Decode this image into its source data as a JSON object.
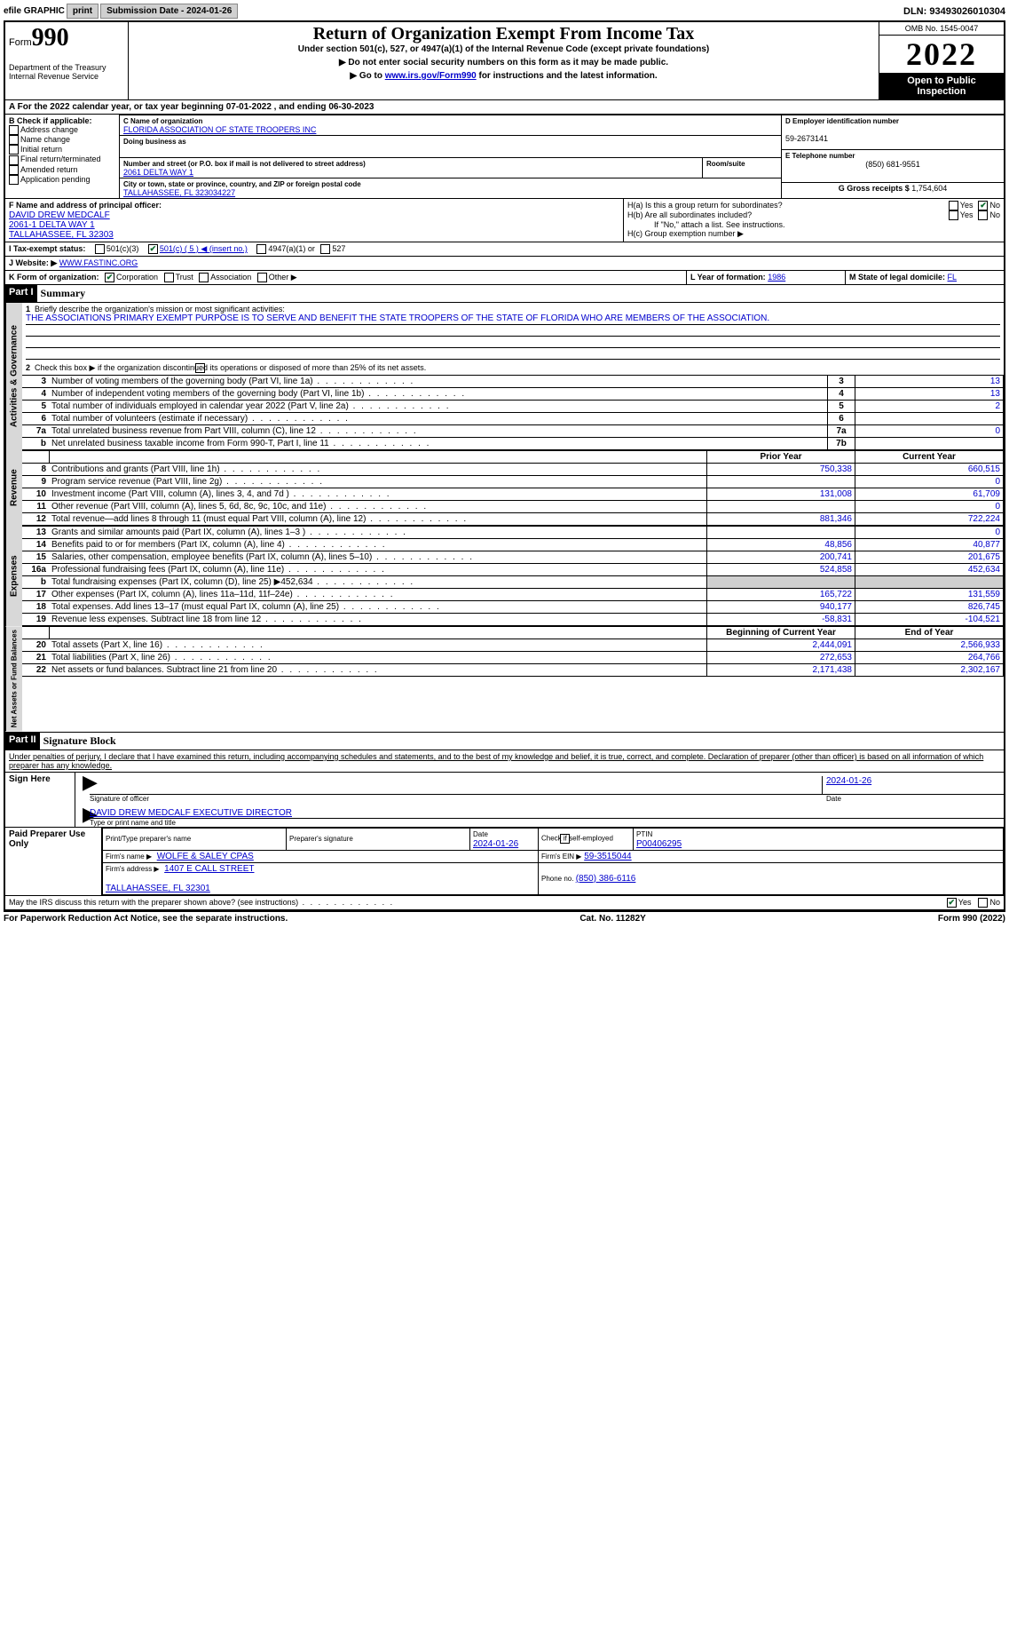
{
  "top": {
    "efile": "efile GRAPHIC",
    "print": "print",
    "submission_label": "Submission Date - ",
    "submission_date": "2024-01-26",
    "dln_label": "DLN: ",
    "dln": "93493026010304"
  },
  "header": {
    "form_word": "Form",
    "form_no": "990",
    "dept": "Department of the Treasury\nInternal Revenue Service",
    "title": "Return of Organization Exempt From Income Tax",
    "sub1": "Under section 501(c), 527, or 4947(a)(1) of the Internal Revenue Code (except private foundations)",
    "sub2": "▶ Do not enter social security numbers on this form as it may be made public.",
    "sub3_pre": "▶ Go to ",
    "sub3_link": "www.irs.gov/Form990",
    "sub3_post": " for instructions and the latest information.",
    "omb": "OMB No. 1545-0047",
    "year": "2022",
    "inspect": "Open to Public Inspection"
  },
  "a": {
    "text": "A For the 2022 calendar year, or tax year beginning 07-01-2022   , and ending 06-30-2023"
  },
  "b": {
    "header": "B Check if applicable:",
    "items": [
      "Address change",
      "Name change",
      "Initial return",
      "Final return/terminated",
      "Amended return",
      "Application pending"
    ]
  },
  "c": {
    "name_lbl": "C Name of organization",
    "name": "FLORIDA ASSOCIATION OF STATE TROOPERS INC",
    "dba_lbl": "Doing business as",
    "addr_lbl": "Number and street (or P.O. box if mail is not delivered to street address)",
    "addr": "2061 DELTA WAY 1",
    "room_lbl": "Room/suite",
    "city_lbl": "City or town, state or province, country, and ZIP or foreign postal code",
    "city": "TALLAHASSEE, FL  323034227"
  },
  "d": {
    "lbl": "D Employer identification number",
    "val": "59-2673141"
  },
  "e": {
    "lbl": "E Telephone number",
    "val": "(850) 681-9551"
  },
  "g": {
    "lbl": "G Gross receipts $ ",
    "val": "1,754,604"
  },
  "f": {
    "lbl": "F Name and address of principal officer:",
    "name": "DAVID DREW MEDCALF",
    "addr": "2061-1 DELTA WAY 1\nTALLAHASSEE, FL  32303"
  },
  "h": {
    "a": "H(a)  Is this a group return for subordinates?",
    "b": "H(b)  Are all subordinates included?",
    "b_note": "If \"No,\" attach a list. See instructions.",
    "c": "H(c)  Group exemption number ▶",
    "yes": "Yes",
    "no": "No"
  },
  "i": {
    "lbl": "I   Tax-exempt status:",
    "o1": "501(c)(3)",
    "o2": "501(c) ( 5 ) ◀ (insert no.)",
    "o3": "4947(a)(1) or",
    "o4": "527"
  },
  "j": {
    "lbl": "J   Website: ▶",
    "val": "WWW.FASTINC.ORG"
  },
  "k": {
    "lbl": "K Form of organization:",
    "o1": "Corporation",
    "o2": "Trust",
    "o3": "Association",
    "o4": "Other ▶"
  },
  "l": {
    "lbl": "L Year of formation: ",
    "val": "1986"
  },
  "m": {
    "lbl": "M State of legal domicile: ",
    "val": "FL"
  },
  "part1": {
    "hdr": "Part I",
    "title": "Summary",
    "s1_lbl": "Briefly describe the organization's mission or most significant activities:",
    "s1_val": "THE ASSOCIATIONS PRIMARY EXEMPT PURPOSE IS TO SERVE AND BENEFIT THE STATE TROOPERS OF THE STATE OF FLORIDA WHO ARE MEMBERS OF THE ASSOCIATION.",
    "s2": "Check this box ▶      if the organization discontinued its operations or disposed of more than 25% of its net assets.",
    "rows_gov": [
      {
        "n": "3",
        "t": "Number of voting members of the governing body (Part VI, line 1a)",
        "box": "3",
        "v": "13"
      },
      {
        "n": "4",
        "t": "Number of independent voting members of the governing body (Part VI, line 1b)",
        "box": "4",
        "v": "13"
      },
      {
        "n": "5",
        "t": "Total number of individuals employed in calendar year 2022 (Part V, line 2a)",
        "box": "5",
        "v": "2"
      },
      {
        "n": "6",
        "t": "Total number of volunteers (estimate if necessary)",
        "box": "6",
        "v": ""
      },
      {
        "n": "7a",
        "t": "Total unrelated business revenue from Part VIII, column (C), line 12",
        "box": "7a",
        "v": "0"
      },
      {
        "n": "b",
        "t": "Net unrelated business taxable income from Form 990-T, Part I, line 11",
        "box": "7b",
        "v": ""
      }
    ],
    "col_prior": "Prior Year",
    "col_curr": "Current Year",
    "rows_rev": [
      {
        "n": "8",
        "t": "Contributions and grants (Part VIII, line 1h)",
        "p": "750,338",
        "c": "660,515"
      },
      {
        "n": "9",
        "t": "Program service revenue (Part VIII, line 2g)",
        "p": "",
        "c": "0"
      },
      {
        "n": "10",
        "t": "Investment income (Part VIII, column (A), lines 3, 4, and 7d )",
        "p": "131,008",
        "c": "61,709"
      },
      {
        "n": "11",
        "t": "Other revenue (Part VIII, column (A), lines 5, 6d, 8c, 9c, 10c, and 11e)",
        "p": "",
        "c": "0"
      },
      {
        "n": "12",
        "t": "Total revenue—add lines 8 through 11 (must equal Part VIII, column (A), line 12)",
        "p": "881,346",
        "c": "722,224"
      }
    ],
    "rows_exp": [
      {
        "n": "13",
        "t": "Grants and similar amounts paid (Part IX, column (A), lines 1–3 )",
        "p": "",
        "c": "0"
      },
      {
        "n": "14",
        "t": "Benefits paid to or for members (Part IX, column (A), line 4)",
        "p": "48,856",
        "c": "40,877"
      },
      {
        "n": "15",
        "t": "Salaries, other compensation, employee benefits (Part IX, column (A), lines 5–10)",
        "p": "200,741",
        "c": "201,675"
      },
      {
        "n": "16a",
        "t": "Professional fundraising fees (Part IX, column (A), line 11e)",
        "p": "524,858",
        "c": "452,634"
      },
      {
        "n": "b",
        "t": "Total fundraising expenses (Part IX, column (D), line 25) ▶452,634",
        "p": "GRAY",
        "c": "GRAY"
      },
      {
        "n": "17",
        "t": "Other expenses (Part IX, column (A), lines 11a–11d, 11f–24e)",
        "p": "165,722",
        "c": "131,559"
      },
      {
        "n": "18",
        "t": "Total expenses. Add lines 13–17 (must equal Part IX, column (A), line 25)",
        "p": "940,177",
        "c": "826,745"
      },
      {
        "n": "19",
        "t": "Revenue less expenses. Subtract line 18 from line 12",
        "p": "-58,831",
        "c": "-104,521"
      }
    ],
    "col_beg": "Beginning of Current Year",
    "col_end": "End of Year",
    "rows_net": [
      {
        "n": "20",
        "t": "Total assets (Part X, line 16)",
        "p": "2,444,091",
        "c": "2,566,933"
      },
      {
        "n": "21",
        "t": "Total liabilities (Part X, line 26)",
        "p": "272,653",
        "c": "264,766"
      },
      {
        "n": "22",
        "t": "Net assets or fund balances. Subtract line 21 from line 20",
        "p": "2,171,438",
        "c": "2,302,167"
      }
    ],
    "vert_gov": "Activities & Governance",
    "vert_rev": "Revenue",
    "vert_exp": "Expenses",
    "vert_net": "Net Assets or Fund Balances"
  },
  "part2": {
    "hdr": "Part II",
    "title": "Signature Block",
    "decl": "Under penalties of perjury, I declare that I have examined this return, including accompanying schedules and statements, and to the best of my knowledge and belief, it is true, correct, and complete. Declaration of preparer (other than officer) is based on all information of which preparer has any knowledge.",
    "sign_here": "Sign Here",
    "sig_officer": "Signature of officer",
    "sig_date": "Date",
    "sig_date_val": "2024-01-26",
    "officer_name": "DAVID DREW MEDCALF  EXECUTIVE DIRECTOR",
    "type_name": "Type or print name and title",
    "paid": "Paid Preparer Use Only",
    "prep_name_lbl": "Print/Type preparer's name",
    "prep_sig_lbl": "Preparer's signature",
    "prep_date_lbl": "Date",
    "prep_date": "2024-01-26",
    "prep_self": "Check        if self-employed",
    "ptin_lbl": "PTIN",
    "ptin": "P00406295",
    "firm_name_lbl": "Firm's name    ▶",
    "firm_name": "WOLFE & SALEY CPAS",
    "firm_ein_lbl": "Firm's EIN ▶",
    "firm_ein": "59-3515044",
    "firm_addr_lbl": "Firm's address ▶",
    "firm_addr": "1407 E CALL STREET\n\nTALLAHASSEE, FL  32301",
    "firm_phone_lbl": "Phone no. ",
    "firm_phone": "(850) 386-6116",
    "discuss": "May the IRS discuss this return with the preparer shown above? (see instructions)",
    "yes": "Yes",
    "no": "No"
  },
  "footer": {
    "left": "For Paperwork Reduction Act Notice, see the separate instructions.",
    "mid": "Cat. No. 11282Y",
    "right": "Form 990 (2022)"
  }
}
